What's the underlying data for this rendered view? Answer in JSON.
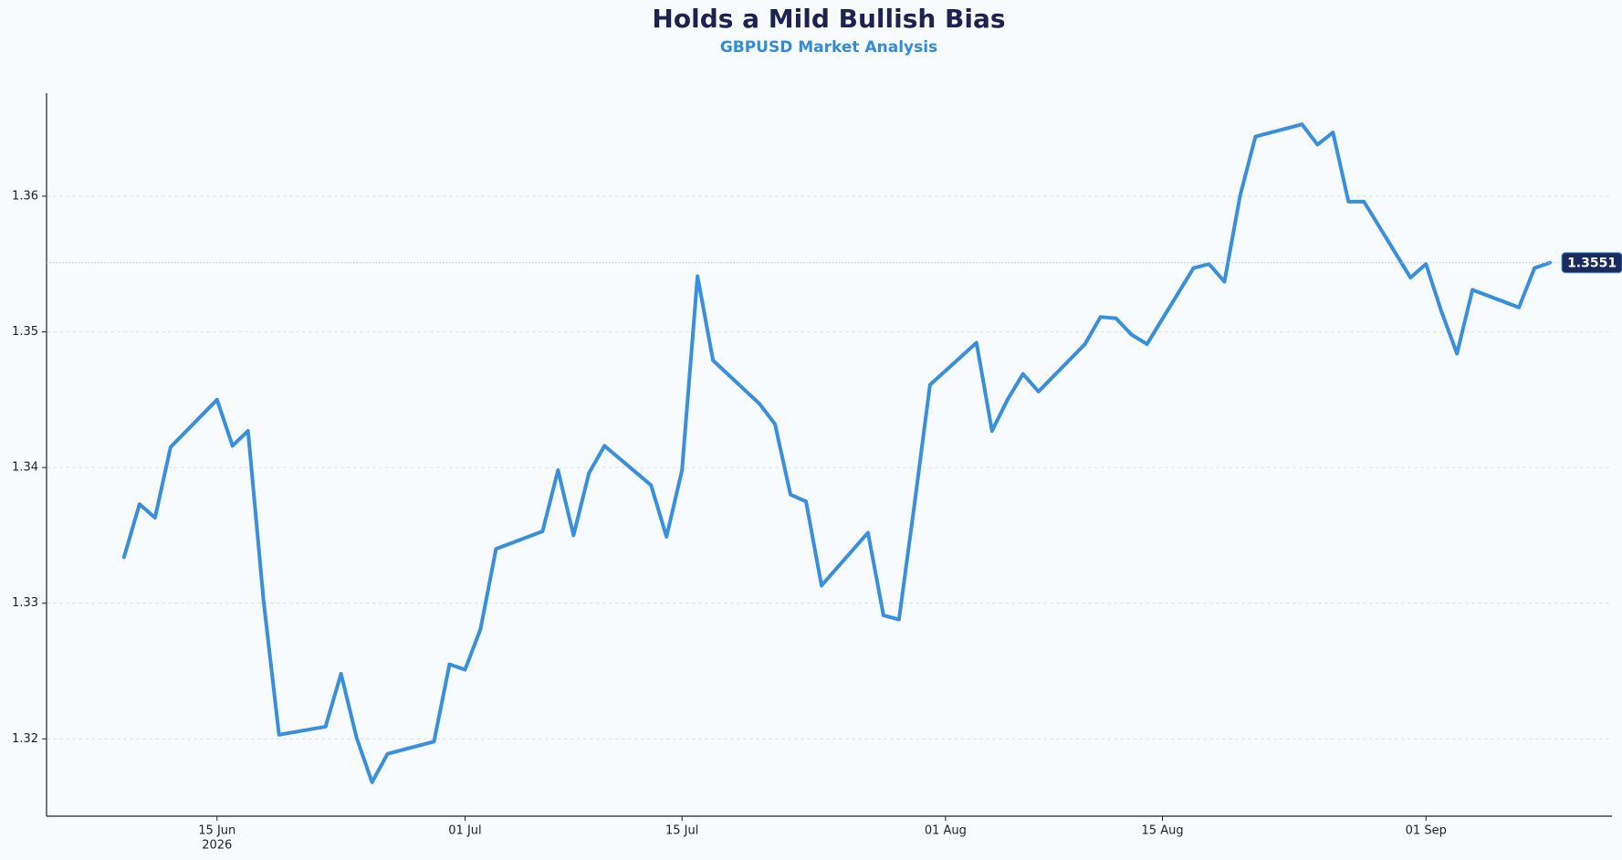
{
  "chart_data": {
    "type": "line",
    "title": "Holds a Mild Bullish Bias",
    "subtitle": "GBPUSD Market Analysis",
    "x": [
      "2026-06-09",
      "2026-06-10",
      "2026-06-11",
      "2026-06-12",
      "2026-06-15",
      "2026-06-16",
      "2026-06-17",
      "2026-06-18",
      "2026-06-19",
      "2026-06-22",
      "2026-06-23",
      "2026-06-24",
      "2026-06-25",
      "2026-06-26",
      "2026-06-29",
      "2026-06-30",
      "2026-07-01",
      "2026-07-02",
      "2026-07-03",
      "2026-07-06",
      "2026-07-07",
      "2026-07-08",
      "2026-07-09",
      "2026-07-10",
      "2026-07-13",
      "2026-07-14",
      "2026-07-15",
      "2026-07-16",
      "2026-07-17",
      "2026-07-20",
      "2026-07-21",
      "2026-07-22",
      "2026-07-23",
      "2026-07-24",
      "2026-07-27",
      "2026-07-28",
      "2026-07-29",
      "2026-07-30",
      "2026-07-31",
      "2026-08-03",
      "2026-08-04",
      "2026-08-05",
      "2026-08-06",
      "2026-08-07",
      "2026-08-10",
      "2026-08-11",
      "2026-08-12",
      "2026-08-13",
      "2026-08-14",
      "2026-08-17",
      "2026-08-18",
      "2026-08-19",
      "2026-08-20",
      "2026-08-21",
      "2026-08-24",
      "2026-08-25",
      "2026-08-26",
      "2026-08-27",
      "2026-08-28",
      "2026-08-31",
      "2026-09-01",
      "2026-09-02",
      "2026-09-03",
      "2026-09-04",
      "2026-09-07",
      "2026-09-08",
      "2026-09-09"
    ],
    "values": [
      1.3334,
      1.3373,
      1.3363,
      1.3415,
      1.345,
      1.3416,
      1.3427,
      1.3302,
      1.3203,
      1.3209,
      1.3248,
      1.3201,
      1.3168,
      1.3189,
      1.3198,
      1.3255,
      1.3251,
      1.3281,
      1.334,
      1.3353,
      1.3398,
      1.335,
      1.3396,
      1.3416,
      1.3387,
      1.3349,
      1.3398,
      1.3541,
      1.3479,
      1.3447,
      1.3432,
      1.338,
      1.3375,
      1.3313,
      1.3352,
      1.3291,
      1.3288,
      1.3373,
      1.3461,
      1.3492,
      1.3427,
      1.345,
      1.3469,
      1.3456,
      1.3491,
      1.3511,
      1.351,
      1.3498,
      1.3491,
      1.3547,
      1.355,
      1.3537,
      1.36,
      1.3644,
      1.3653,
      1.3638,
      1.3647,
      1.3596,
      1.3596,
      1.354,
      1.355,
      1.3515,
      1.3484,
      1.3531,
      1.3518,
      1.3547,
      1.3551
    ],
    "color": "#3590e3",
    "xlim": [
      "2026-06-04",
      "2026-09-13"
    ],
    "xticks": [
      {
        "value": "2026-06-15",
        "label": "15 Jun"
      },
      {
        "value": "2026-07-01",
        "label": "01 Jul"
      },
      {
        "value": "2026-07-15",
        "label": "15 Jul"
      },
      {
        "value": "2026-08-01",
        "label": "01 Aug"
      },
      {
        "value": "2026-08-15",
        "label": "15 Aug"
      },
      {
        "value": "2026-09-01",
        "label": "01 Sep"
      }
    ],
    "xtick_year": "2026",
    "ylim": [
      1.3143,
      1.3676
    ],
    "yticks": [
      {
        "value": 1.32,
        "label": "1.32"
      },
      {
        "value": 1.33,
        "label": "1.33"
      },
      {
        "value": 1.34,
        "label": "1.34"
      },
      {
        "value": 1.35,
        "label": "1.35"
      },
      {
        "value": 1.36,
        "label": "1.36"
      }
    ],
    "grid": true
  }
}
